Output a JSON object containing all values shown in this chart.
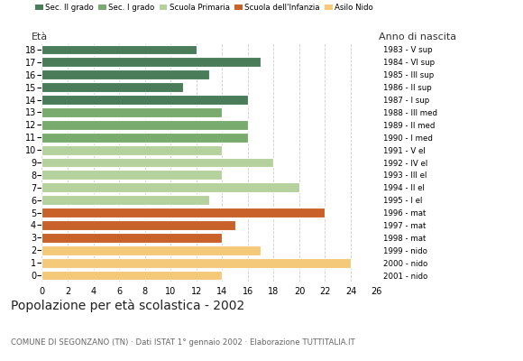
{
  "ages": [
    18,
    17,
    16,
    15,
    14,
    13,
    12,
    11,
    10,
    9,
    8,
    7,
    6,
    5,
    4,
    3,
    2,
    1,
    0
  ],
  "values": [
    12,
    17,
    13,
    11,
    16,
    14,
    16,
    16,
    14,
    18,
    14,
    20,
    13,
    22,
    15,
    14,
    17,
    24,
    14
  ],
  "anno_nascita": [
    "1983 - V sup",
    "1984 - VI sup",
    "1985 - III sup",
    "1986 - II sup",
    "1987 - I sup",
    "1988 - III med",
    "1989 - II med",
    "1990 - I med",
    "1991 - V el",
    "1992 - IV el",
    "1993 - III el",
    "1994 - II el",
    "1995 - I el",
    "1996 - mat",
    "1997 - mat",
    "1998 - mat",
    "1999 - nido",
    "2000 - nido",
    "2001 - nido"
  ],
  "colors": [
    "#4a7c59",
    "#4a7c59",
    "#4a7c59",
    "#4a7c59",
    "#4a7c59",
    "#7aab6e",
    "#7aab6e",
    "#7aab6e",
    "#b5d19e",
    "#b5d19e",
    "#b5d19e",
    "#b5d19e",
    "#b5d19e",
    "#c8622a",
    "#c8622a",
    "#c8622a",
    "#f5c97a",
    "#f5c97a",
    "#f5c97a"
  ],
  "legend_labels": [
    "Sec. II grado",
    "Sec. I grado",
    "Scuola Primaria",
    "Scuola dell'Infanzia",
    "Asilo Nido"
  ],
  "legend_colors": [
    "#4a7c59",
    "#7aab6e",
    "#b5d19e",
    "#c8622a",
    "#f5c97a"
  ],
  "title": "Popolazione per età scolastica - 2002",
  "subtitle": "COMUNE DI SEGONZANO (TN) · Dati ISTAT 1° gennaio 2002 · Elaborazione TUTTITALIA.IT",
  "ylabel_left": "Età",
  "ylabel_right": "Anno di nascita",
  "xlim": [
    0,
    26
  ],
  "xticks": [
    0,
    2,
    4,
    6,
    8,
    10,
    12,
    14,
    16,
    18,
    20,
    22,
    24,
    26
  ],
  "background_color": "#ffffff",
  "grid_color": "#cccccc"
}
